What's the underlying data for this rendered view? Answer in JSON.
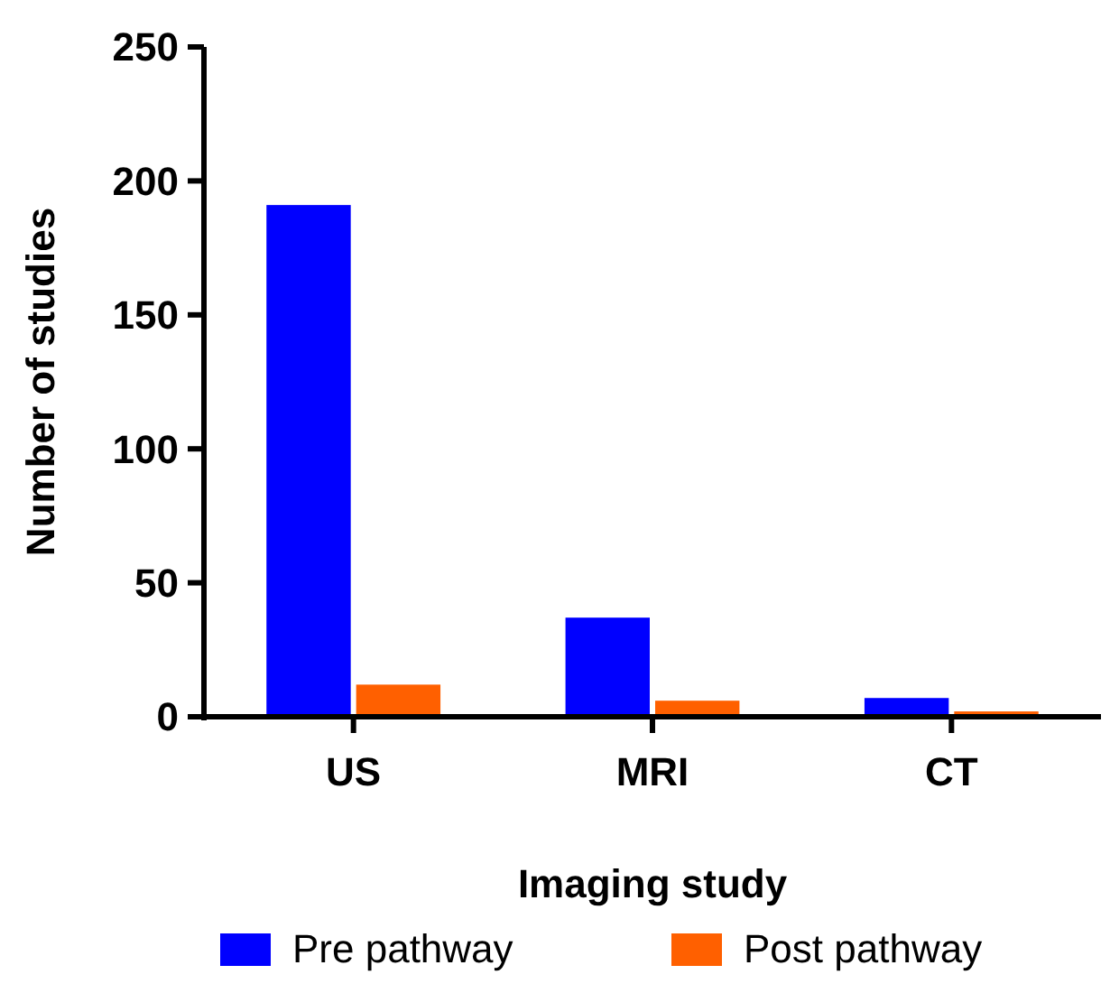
{
  "chart_data": {
    "type": "bar",
    "xlabel": "Imaging study",
    "ylabel": "Number of studies",
    "categories": [
      "US",
      "MRI",
      "CT"
    ],
    "series": [
      {
        "name": "Pre pathway",
        "color": "#0000ff",
        "values": [
          191,
          37,
          7
        ]
      },
      {
        "name": "Post pathway",
        "color": "#ff6000",
        "values": [
          12,
          6,
          2
        ]
      }
    ],
    "ylim": [
      0,
      250
    ],
    "yticks": [
      0,
      50,
      100,
      150,
      200,
      250
    ],
    "grid": false,
    "legend": "bottom"
  }
}
